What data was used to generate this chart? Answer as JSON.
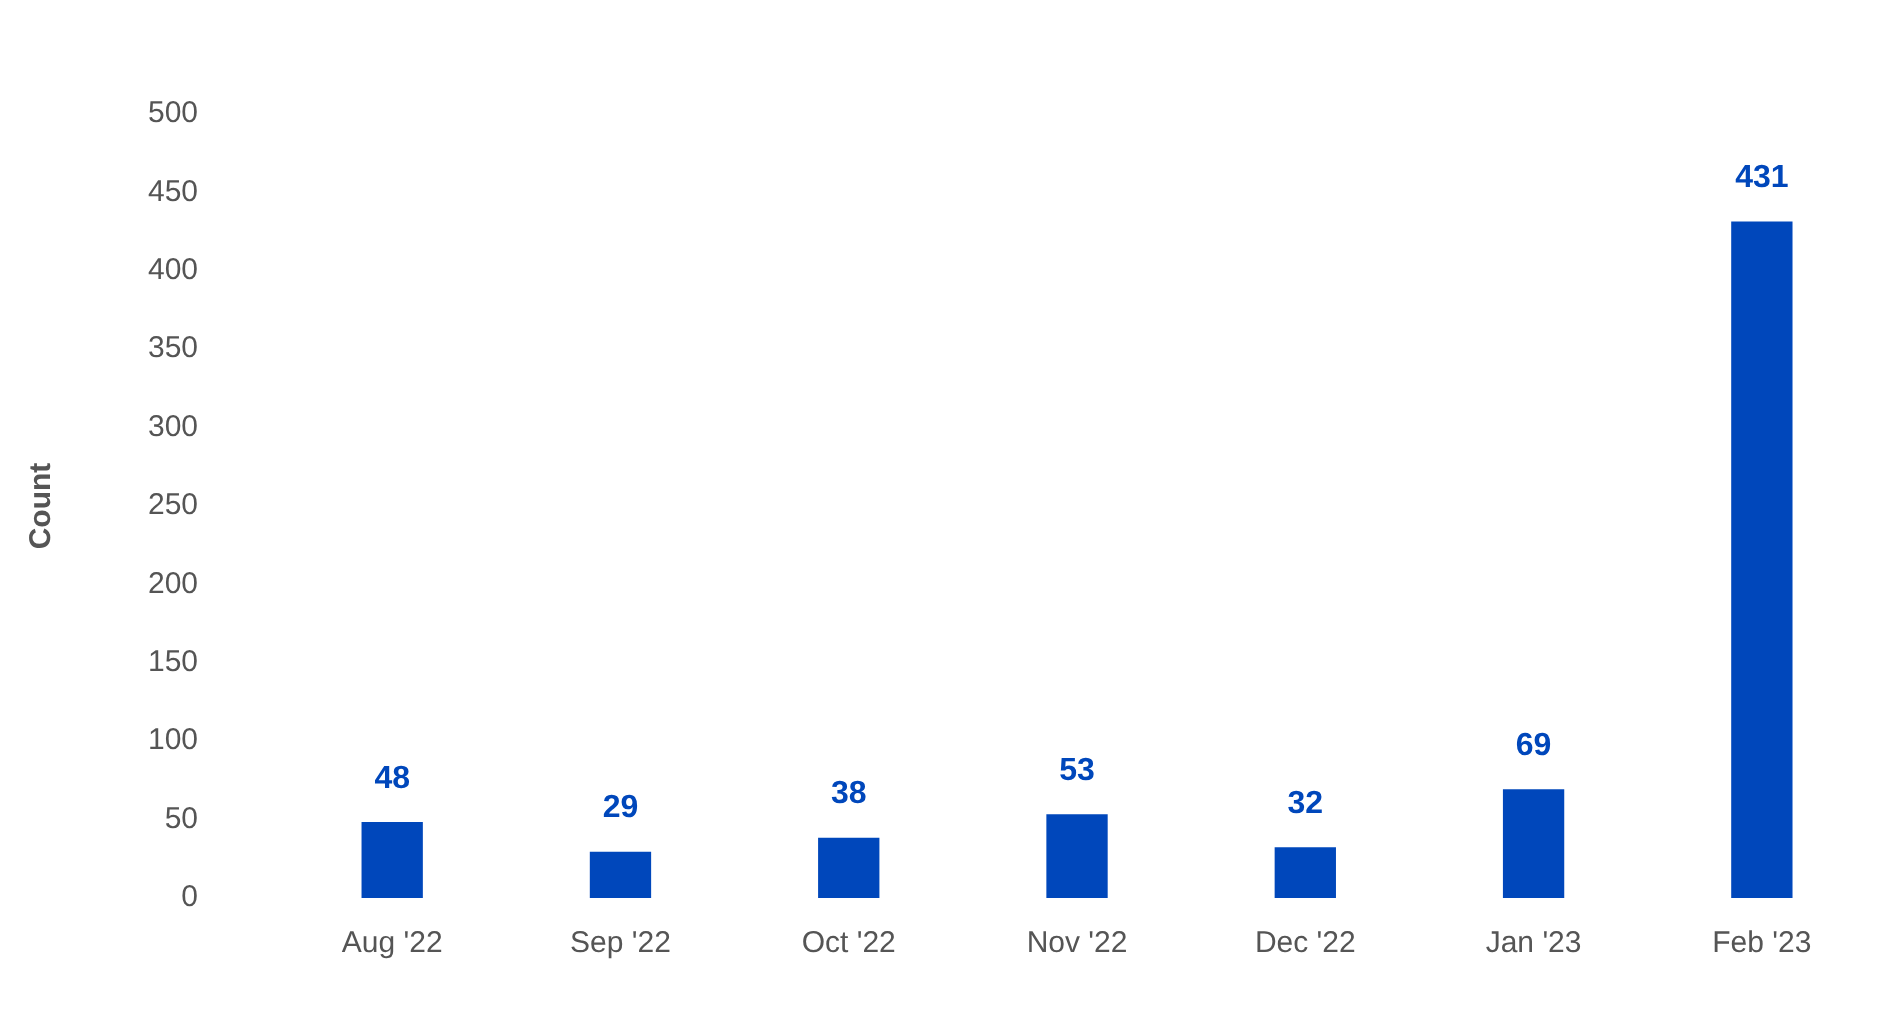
{
  "chart_data": {
    "type": "bar",
    "ylabel": "Count",
    "categories": [
      "Aug '22",
      "Sep '22",
      "Oct '22",
      "Nov '22",
      "Dec '22",
      "Jan '23",
      "Feb '23"
    ],
    "values": [
      48,
      29,
      38,
      53,
      32,
      69,
      431
    ],
    "color": "#0047bb",
    "ylim": [
      0,
      500
    ],
    "yticks": [
      0,
      50,
      100,
      150,
      200,
      250,
      300,
      350,
      400,
      450,
      500
    ],
    "grid": false,
    "legend": false,
    "data_labels": true
  }
}
